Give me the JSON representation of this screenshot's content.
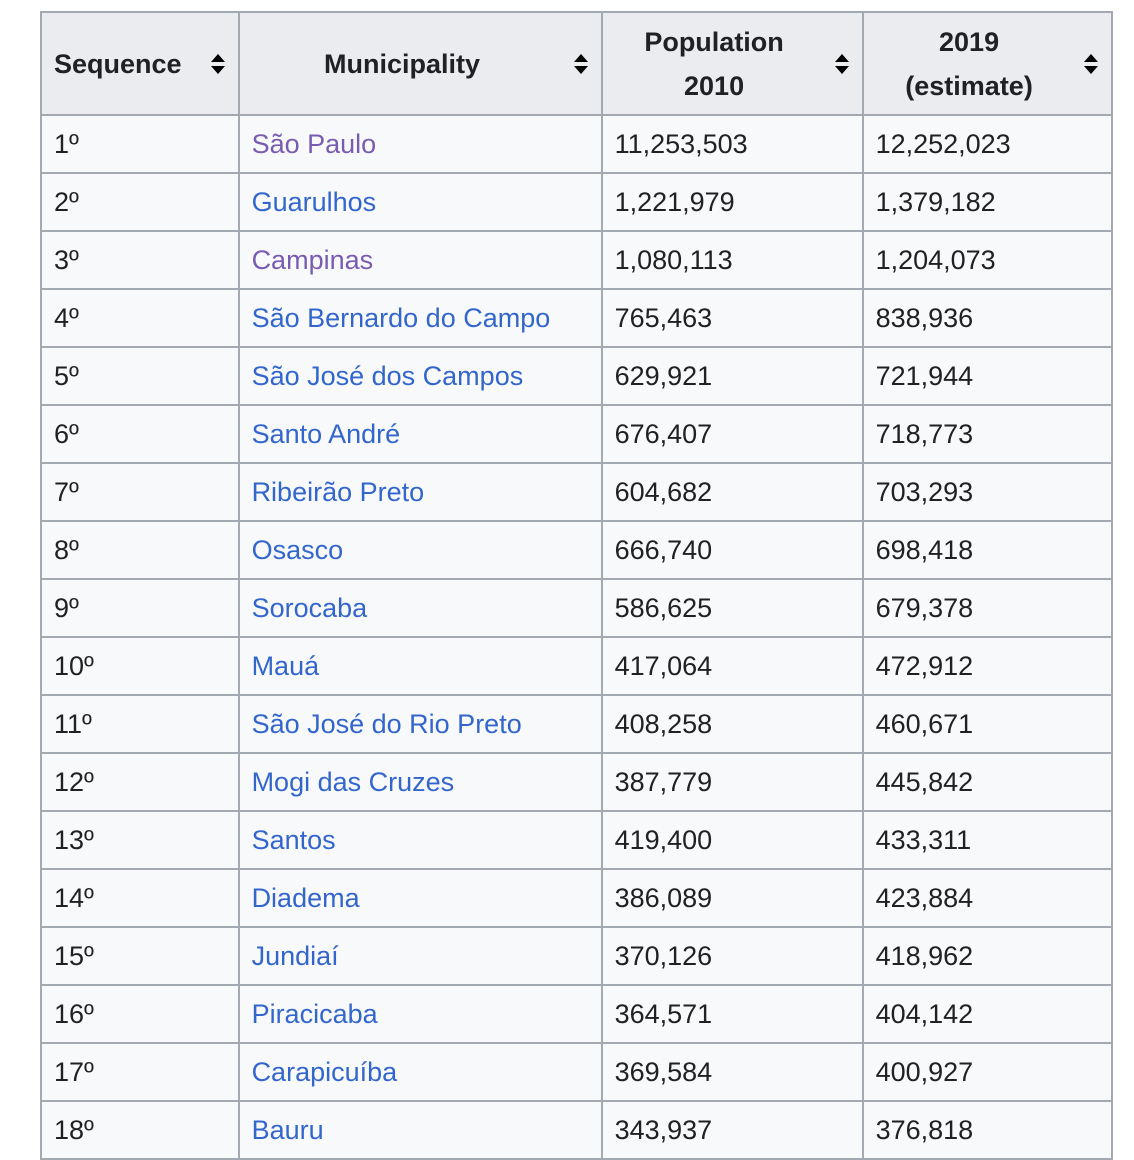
{
  "table": {
    "headers": {
      "sequence": "Sequence",
      "municipality": "Municipality",
      "population_line1": "Population",
      "population_line2": "2010",
      "estimate_line1": "2019",
      "estimate_line2": "(estimate)"
    },
    "sort_icon": "sort-up-down-icon",
    "colors": {
      "link": "#3366cc",
      "visited_link": "#795cb2",
      "header_bg": "#eaecf0",
      "cell_bg": "#f8f9fa",
      "border": "#a2a9b1",
      "text": "#202122"
    },
    "rows": [
      {
        "seq": "1º",
        "municipality": "São Paulo",
        "pop2010": "11,253,503",
        "est2019": "12,252,023",
        "visited": true
      },
      {
        "seq": "2º",
        "municipality": "Guarulhos",
        "pop2010": "1,221,979",
        "est2019": "1,379,182",
        "visited": false
      },
      {
        "seq": "3º",
        "municipality": "Campinas",
        "pop2010": "1,080,113",
        "est2019": "1,204,073",
        "visited": true
      },
      {
        "seq": "4º",
        "municipality": "São Bernardo do Campo",
        "pop2010": "765,463",
        "est2019": "838,936",
        "visited": false
      },
      {
        "seq": "5º",
        "municipality": "São José dos Campos",
        "pop2010": "629,921",
        "est2019": "721,944",
        "visited": false
      },
      {
        "seq": "6º",
        "municipality": "Santo André",
        "pop2010": "676,407",
        "est2019": "718,773",
        "visited": false
      },
      {
        "seq": "7º",
        "municipality": "Ribeirão Preto",
        "pop2010": "604,682",
        "est2019": "703,293",
        "visited": false
      },
      {
        "seq": "8º",
        "municipality": "Osasco",
        "pop2010": "666,740",
        "est2019": "698,418",
        "visited": false
      },
      {
        "seq": "9º",
        "municipality": "Sorocaba",
        "pop2010": "586,625",
        "est2019": "679,378",
        "visited": false
      },
      {
        "seq": "10º",
        "municipality": "Mauá",
        "pop2010": "417,064",
        "est2019": "472,912",
        "visited": false
      },
      {
        "seq": "11º",
        "municipality": "São José do Rio Preto",
        "pop2010": "408,258",
        "est2019": "460,671",
        "visited": false
      },
      {
        "seq": "12º",
        "municipality": "Mogi das Cruzes",
        "pop2010": "387,779",
        "est2019": "445,842",
        "visited": false
      },
      {
        "seq": "13º",
        "municipality": "Santos",
        "pop2010": "419,400",
        "est2019": "433,311",
        "visited": false
      },
      {
        "seq": "14º",
        "municipality": "Diadema",
        "pop2010": "386,089",
        "est2019": "423,884",
        "visited": false
      },
      {
        "seq": "15º",
        "municipality": "Jundiaí",
        "pop2010": "370,126",
        "est2019": "418,962",
        "visited": false
      },
      {
        "seq": "16º",
        "municipality": "Piracicaba",
        "pop2010": "364,571",
        "est2019": "404,142",
        "visited": false
      },
      {
        "seq": "17º",
        "municipality": "Carapicuíba",
        "pop2010": "369,584",
        "est2019": "400,927",
        "visited": false
      },
      {
        "seq": "18º",
        "municipality": "Bauru",
        "pop2010": "343,937",
        "est2019": "376,818",
        "visited": false
      }
    ]
  }
}
